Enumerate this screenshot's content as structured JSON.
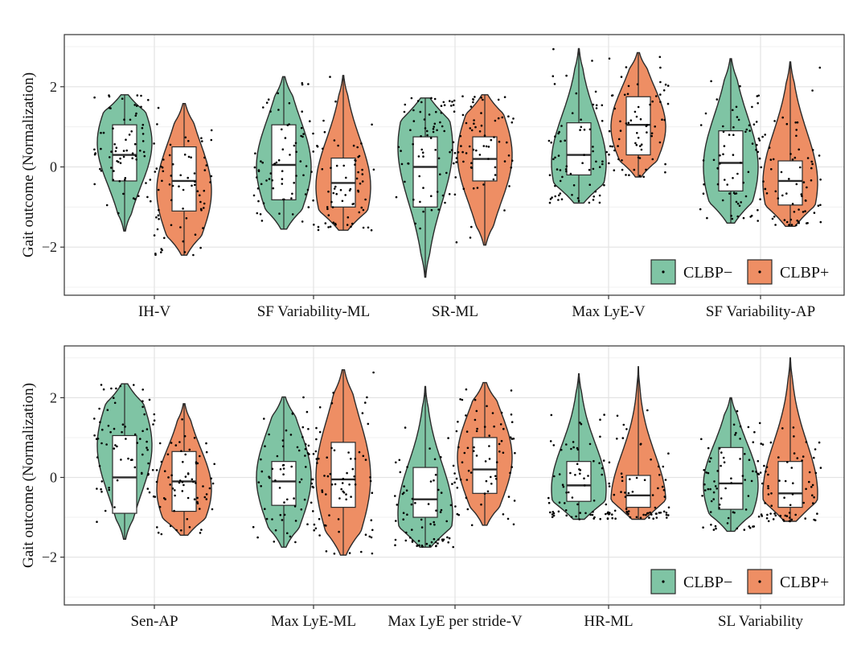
{
  "chart_data": [
    {
      "type": "violin",
      "ylabel": "Gait outcome (Normalization)",
      "xlabel": "",
      "ylim": [
        -3.2,
        3.3
      ],
      "yticks": [
        -2,
        0,
        2
      ],
      "grid": true,
      "legend": {
        "placement": "bottom-right",
        "entries": [
          "CLBP−",
          "CLBP+"
        ]
      },
      "categories": [
        "IH-V",
        "SF Variability-ML",
        "SR-ML",
        "Max LyE-V",
        "SF Variability-AP"
      ],
      "series": [
        {
          "name": "CLBP−",
          "color": "#7fc4a4",
          "violins": [
            {
              "min": -1.6,
              "q1": -0.35,
              "median": 0.3,
              "q3": 1.05,
              "max": 1.8,
              "peak": 0.6
            },
            {
              "min": -1.55,
              "q1": -0.82,
              "median": 0.05,
              "q3": 1.05,
              "max": 2.25,
              "peak": 0.0
            },
            {
              "min": -2.75,
              "q1": -1.0,
              "median": 0.0,
              "q3": 0.75,
              "max": 1.72,
              "peak": 0.5
            },
            {
              "min": -0.9,
              "q1": -0.2,
              "median": 0.3,
              "q3": 1.1,
              "max": 2.95,
              "peak": 0.1
            },
            {
              "min": -1.4,
              "q1": -0.6,
              "median": 0.1,
              "q3": 0.9,
              "max": 2.7,
              "peak": 0.0
            }
          ]
        },
        {
          "name": "CLBP+",
          "color": "#ee8e64",
          "violins": [
            {
              "min": -2.2,
              "q1": -1.1,
              "median": -0.35,
              "q3": 0.5,
              "max": 1.58,
              "peak": -0.6
            },
            {
              "min": -1.58,
              "q1": -1.0,
              "median": -0.4,
              "q3": 0.22,
              "max": 2.28,
              "peak": -0.5
            },
            {
              "min": -1.95,
              "q1": -0.35,
              "median": 0.2,
              "q3": 0.75,
              "max": 1.8,
              "peak": 0.3
            },
            {
              "min": -0.25,
              "q1": 0.3,
              "median": 1.05,
              "q3": 1.75,
              "max": 2.85,
              "peak": 1.0
            },
            {
              "min": -1.48,
              "q1": -0.95,
              "median": -0.35,
              "q3": 0.15,
              "max": 2.62,
              "peak": -0.4
            }
          ]
        }
      ]
    },
    {
      "type": "violin",
      "ylabel": "Gait outcome (Normalization)",
      "xlabel": "",
      "ylim": [
        -3.2,
        3.3
      ],
      "yticks": [
        -2,
        0,
        2
      ],
      "grid": true,
      "legend": {
        "placement": "bottom-right",
        "entries": [
          "CLBP−",
          "CLBP+"
        ]
      },
      "categories": [
        "Sen-AP",
        "Max LyE-ML",
        "Max LyE per stride-V",
        "HR-ML",
        "SL Variability"
      ],
      "series": [
        {
          "name": "CLBP−",
          "color": "#7fc4a4",
          "violins": [
            {
              "min": -1.55,
              "q1": -0.9,
              "median": 0.0,
              "q3": 1.05,
              "max": 2.35,
              "peak": 0.8
            },
            {
              "min": -1.75,
              "q1": -0.7,
              "median": -0.1,
              "q3": 0.4,
              "max": 2.02,
              "peak": 0.0
            },
            {
              "min": -1.75,
              "q1": -1.0,
              "median": -0.55,
              "q3": 0.25,
              "max": 2.28,
              "peak": -0.9
            },
            {
              "min": -1.05,
              "q1": -0.6,
              "median": -0.2,
              "q3": 0.4,
              "max": 2.6,
              "peak": -0.3
            },
            {
              "min": -1.35,
              "q1": -0.8,
              "median": -0.15,
              "q3": 0.75,
              "max": 2.0,
              "peak": -0.2
            }
          ]
        },
        {
          "name": "CLBP+",
          "color": "#ee8e64",
          "violins": [
            {
              "min": -1.45,
              "q1": -0.85,
              "median": -0.1,
              "q3": 0.65,
              "max": 1.85,
              "peak": -0.3
            },
            {
              "min": -1.95,
              "q1": -0.75,
              "median": -0.05,
              "q3": 0.88,
              "max": 2.7,
              "peak": 0.0
            },
            {
              "min": -1.2,
              "q1": -0.4,
              "median": 0.2,
              "q3": 1.0,
              "max": 2.38,
              "peak": 0.5
            },
            {
              "min": -1.05,
              "q1": -0.75,
              "median": -0.45,
              "q3": 0.05,
              "max": 2.78,
              "peak": -0.6
            },
            {
              "min": -1.1,
              "q1": -0.75,
              "median": -0.4,
              "q3": 0.4,
              "max": 3.0,
              "peak": -0.4
            }
          ]
        }
      ]
    }
  ]
}
